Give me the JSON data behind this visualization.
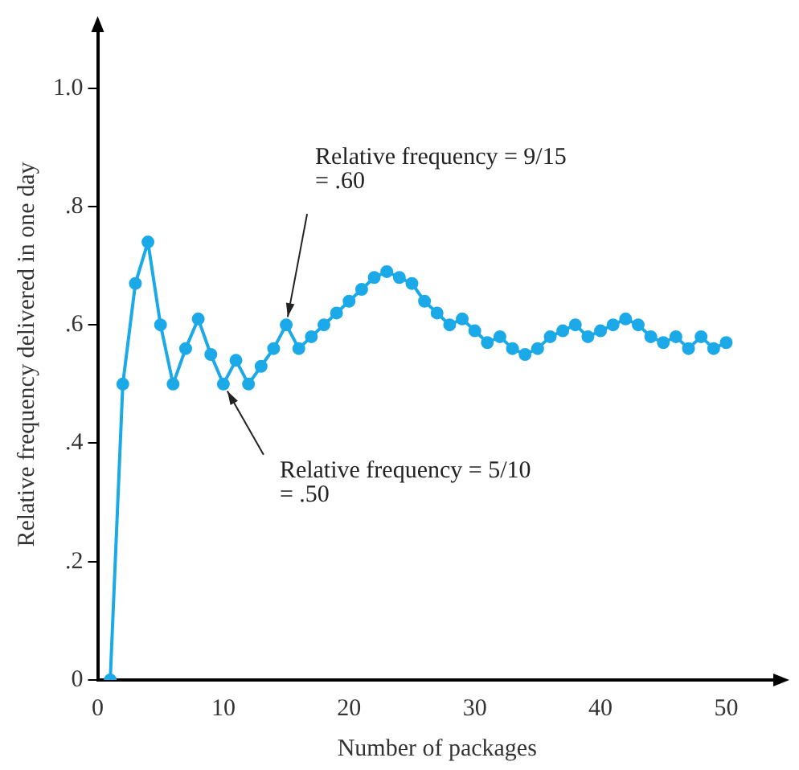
{
  "chart_data": {
    "type": "line",
    "xlabel": "Number of packages",
    "ylabel": "Relative frequency delivered in one day",
    "x": [
      1,
      2,
      3,
      4,
      5,
      6,
      7,
      8,
      9,
      10,
      11,
      12,
      13,
      14,
      15,
      16,
      17,
      18,
      19,
      20,
      21,
      22,
      23,
      24,
      25,
      26,
      27,
      28,
      29,
      30,
      31,
      32,
      33,
      34,
      35,
      36,
      37,
      38,
      39,
      40,
      41,
      42,
      43,
      44,
      45,
      46,
      47,
      48,
      49,
      50
    ],
    "series": [
      {
        "color": "#1ba9e8",
        "values": [
          0,
          0.5,
          0.67,
          0.74,
          0.6,
          0.5,
          0.56,
          0.61,
          0.55,
          0.5,
          0.54,
          0.5,
          0.53,
          0.56,
          0.6,
          0.56,
          0.58,
          0.6,
          0.62,
          0.64,
          0.66,
          0.68,
          0.69,
          0.68,
          0.67,
          0.64,
          0.62,
          0.6,
          0.61,
          0.59,
          0.57,
          0.58,
          0.56,
          0.55,
          0.56,
          0.58,
          0.59,
          0.6,
          0.58,
          0.59,
          0.6,
          0.61,
          0.6,
          0.58,
          0.57,
          0.58,
          0.56,
          0.58,
          0.56,
          0.57
        ]
      }
    ],
    "xlim": [
      0,
      54
    ],
    "xticks": [
      0,
      10,
      20,
      30,
      40,
      50
    ],
    "ylim": [
      0,
      1.1
    ],
    "yticks": [
      0,
      {
        "value": 0.2,
        "label": ".2"
      },
      {
        "value": 0.4,
        "label": ".4"
      },
      {
        "value": 0.6,
        "label": ".6"
      },
      {
        "value": 0.8,
        "label": ".8"
      },
      {
        "value": 1,
        "label": "1.0"
      }
    ],
    "grid": false,
    "legend": false,
    "marker": "circle",
    "line_style": "solid",
    "annotations": [
      {
        "text": "Relative frequency = 9/15 = .60",
        "x": 15,
        "y": 0.6
      },
      {
        "text": "Relative frequency = 5/10 = .50",
        "x": 10,
        "y": 0.5
      }
    ]
  }
}
